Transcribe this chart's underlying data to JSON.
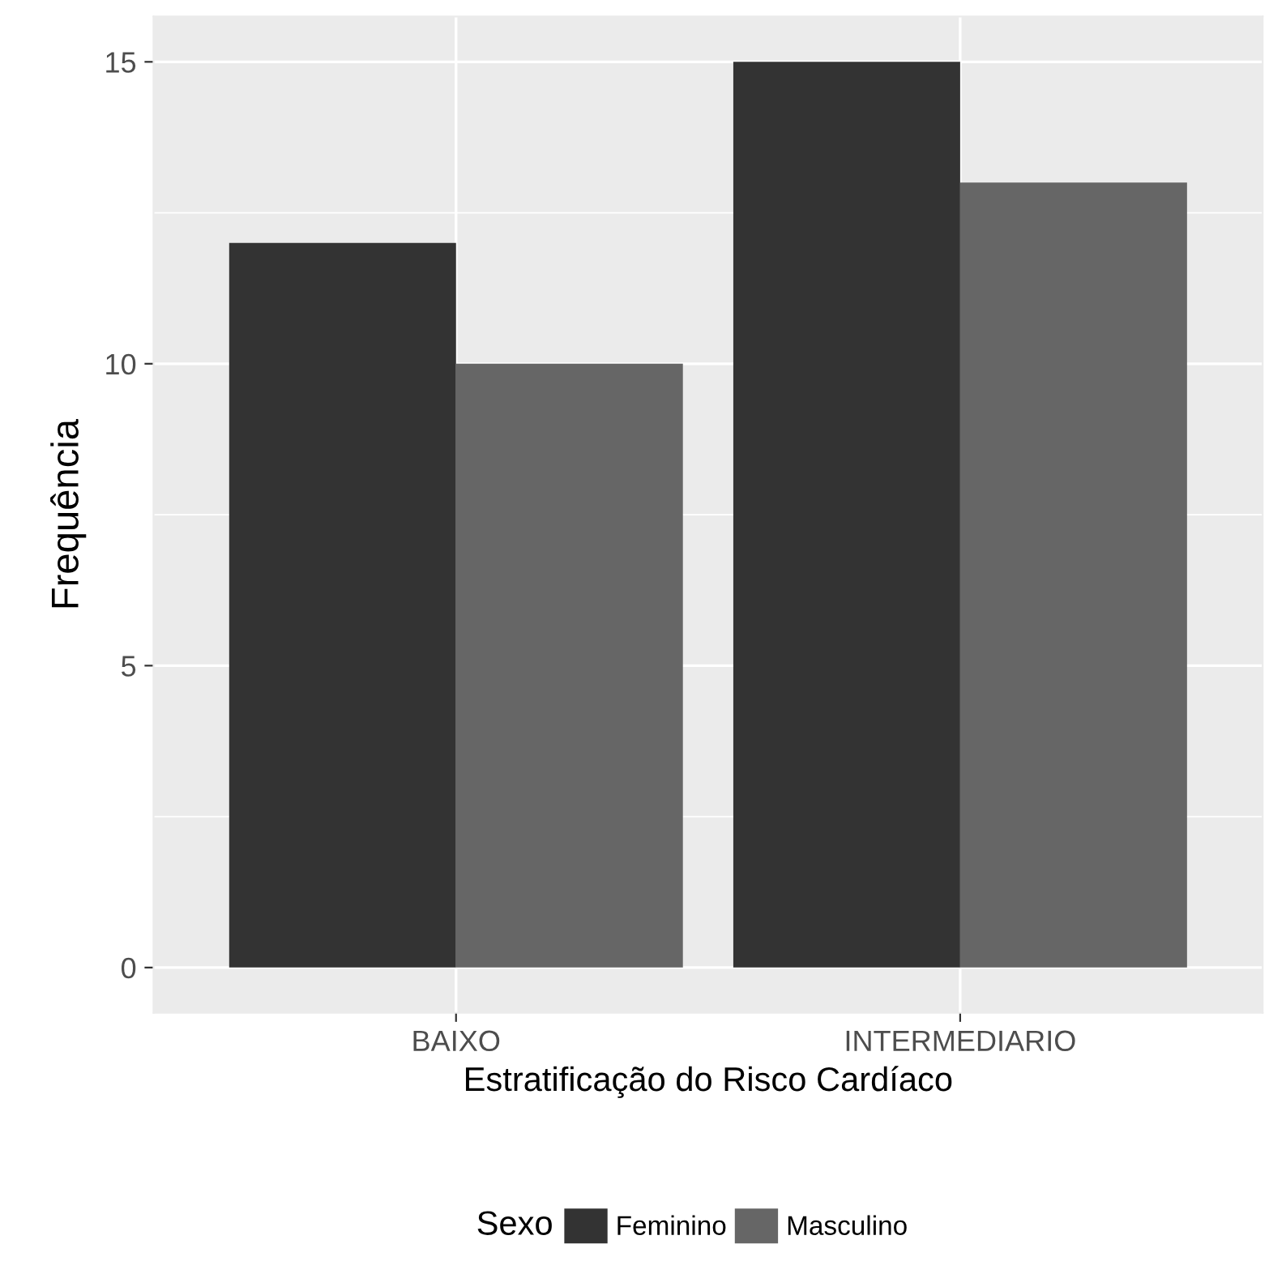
{
  "chart_data": {
    "type": "bar",
    "xlabel": "Estratificação do Risco Cardíaco",
    "ylabel": "Frequência",
    "legend_title": "Sexo",
    "categories": [
      "BAIXO",
      "INTERMEDIARIO"
    ],
    "series": [
      {
        "name": "Feminino",
        "color": "#333333",
        "values": [
          12,
          15
        ]
      },
      {
        "name": "Masculino",
        "color": "#666666",
        "values": [
          10,
          13
        ]
      }
    ],
    "ylim": [
      -0.75,
      15.75
    ],
    "yticks": [
      0,
      5,
      10,
      15
    ],
    "grid": true,
    "legend": "bottom"
  }
}
